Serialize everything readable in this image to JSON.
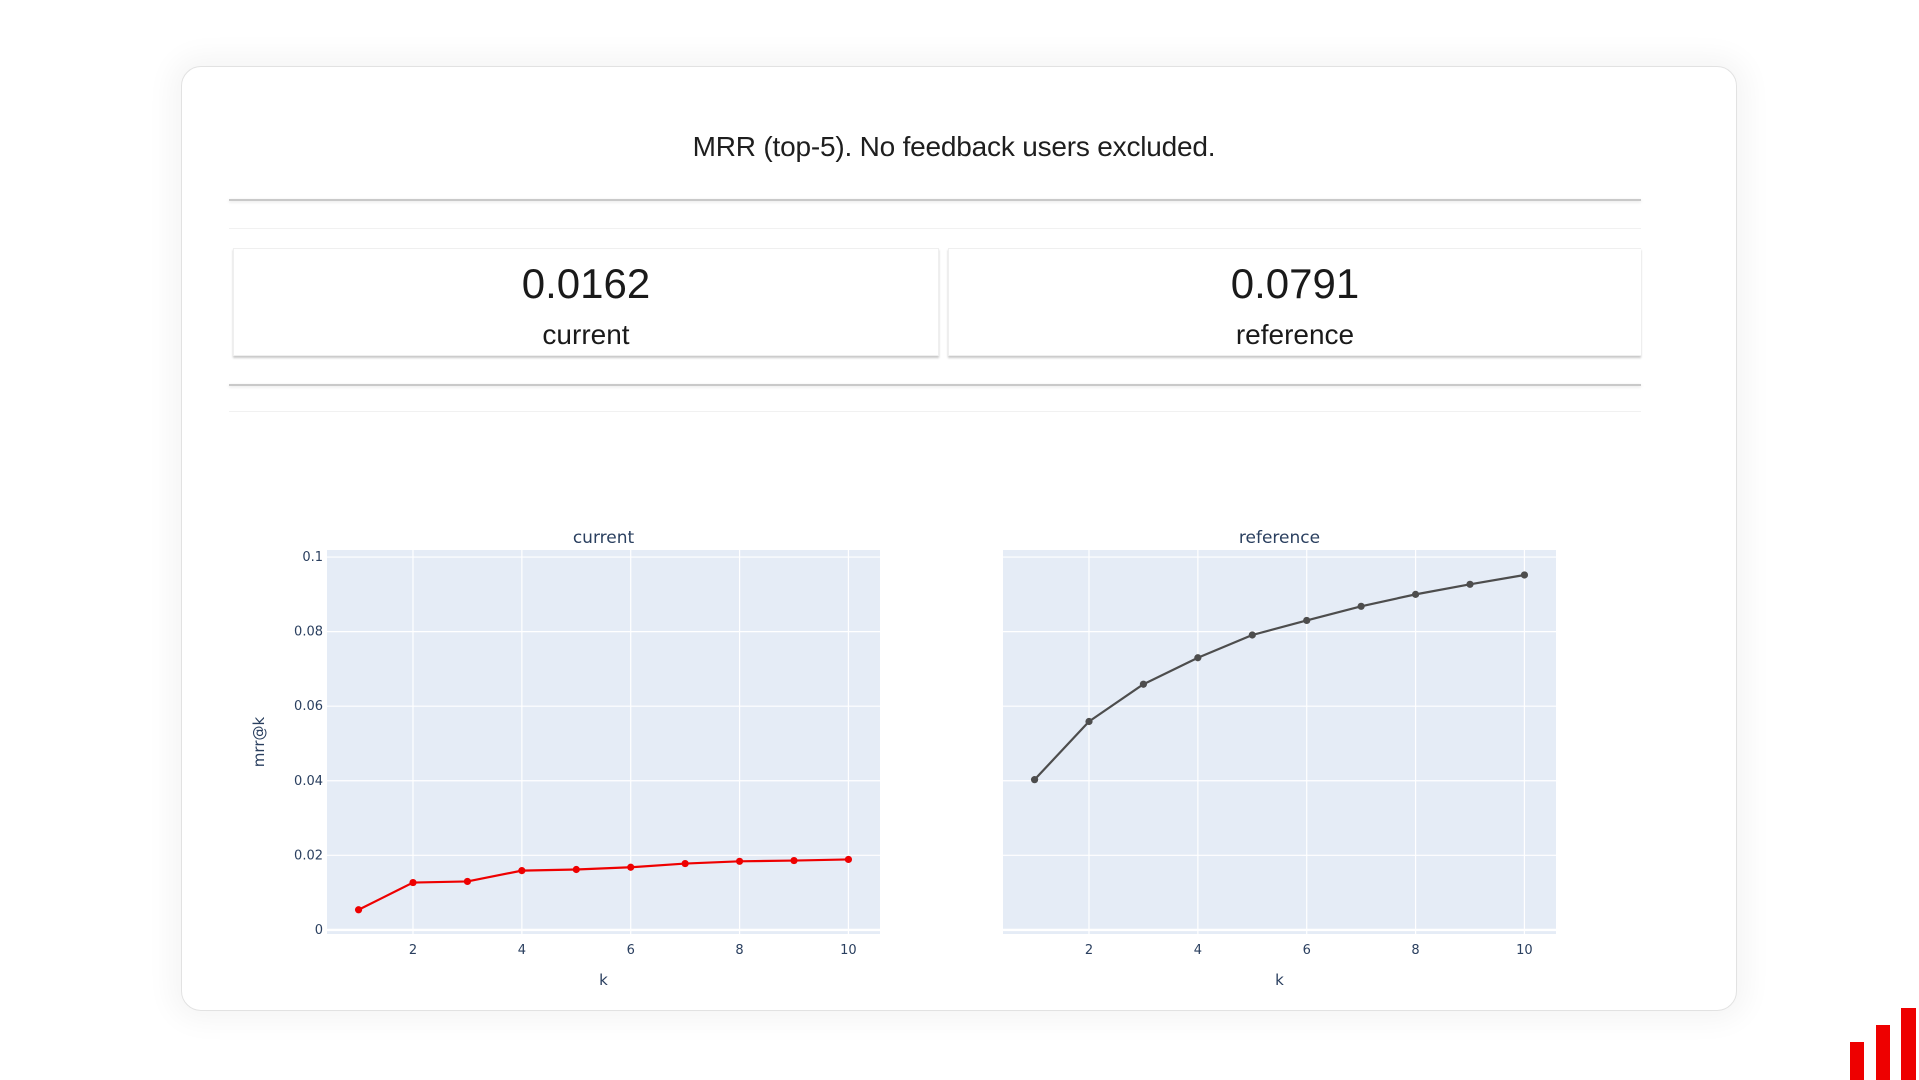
{
  "widget": {
    "title": "MRR (top-5). No feedback users excluded."
  },
  "metrics": [
    {
      "value": "0.0162",
      "label": "current"
    },
    {
      "value": "0.0791",
      "label": "reference"
    }
  ],
  "colors": {
    "current_line": "#ee0000",
    "reference_line": "#4d4d4d",
    "plot_bg": "#e5ecf6",
    "grid": "#ffffff",
    "axis_text": "#2a3f5f",
    "logo": "#ee0000"
  },
  "logo": {
    "icon": "bar-chart-logo-icon"
  },
  "chart_data": [
    {
      "type": "line",
      "title": "current",
      "xlabel": "k",
      "ylabel": "mrr@k",
      "x": [
        1,
        2,
        3,
        4,
        5,
        6,
        7,
        8,
        9,
        10
      ],
      "values": [
        0.0054,
        0.0127,
        0.013,
        0.0159,
        0.0162,
        0.0168,
        0.0178,
        0.0184,
        0.0186,
        0.0189
      ],
      "xticks": [
        "2",
        "4",
        "6",
        "8",
        "10"
      ],
      "yticks": [
        "0",
        "0.02",
        "0.04",
        "0.06",
        "0.08",
        "0.1"
      ],
      "xlim": [
        0.42,
        10.58
      ],
      "ylim": [
        -0.0011,
        0.1019
      ],
      "grid": true,
      "color": "#ee0000"
    },
    {
      "type": "line",
      "title": "reference",
      "xlabel": "k",
      "ylabel": "",
      "x": [
        1,
        2,
        3,
        4,
        5,
        6,
        7,
        8,
        9,
        10
      ],
      "values": [
        0.0403,
        0.0559,
        0.0659,
        0.073,
        0.0791,
        0.083,
        0.0868,
        0.09,
        0.0927,
        0.0952
      ],
      "xticks": [
        "2",
        "4",
        "6",
        "8",
        "10"
      ],
      "yticks": [],
      "xlim": [
        0.42,
        10.58
      ],
      "ylim": [
        -0.0011,
        0.1019
      ],
      "grid": true,
      "shared_y": true,
      "color": "#4d4d4d"
    }
  ]
}
